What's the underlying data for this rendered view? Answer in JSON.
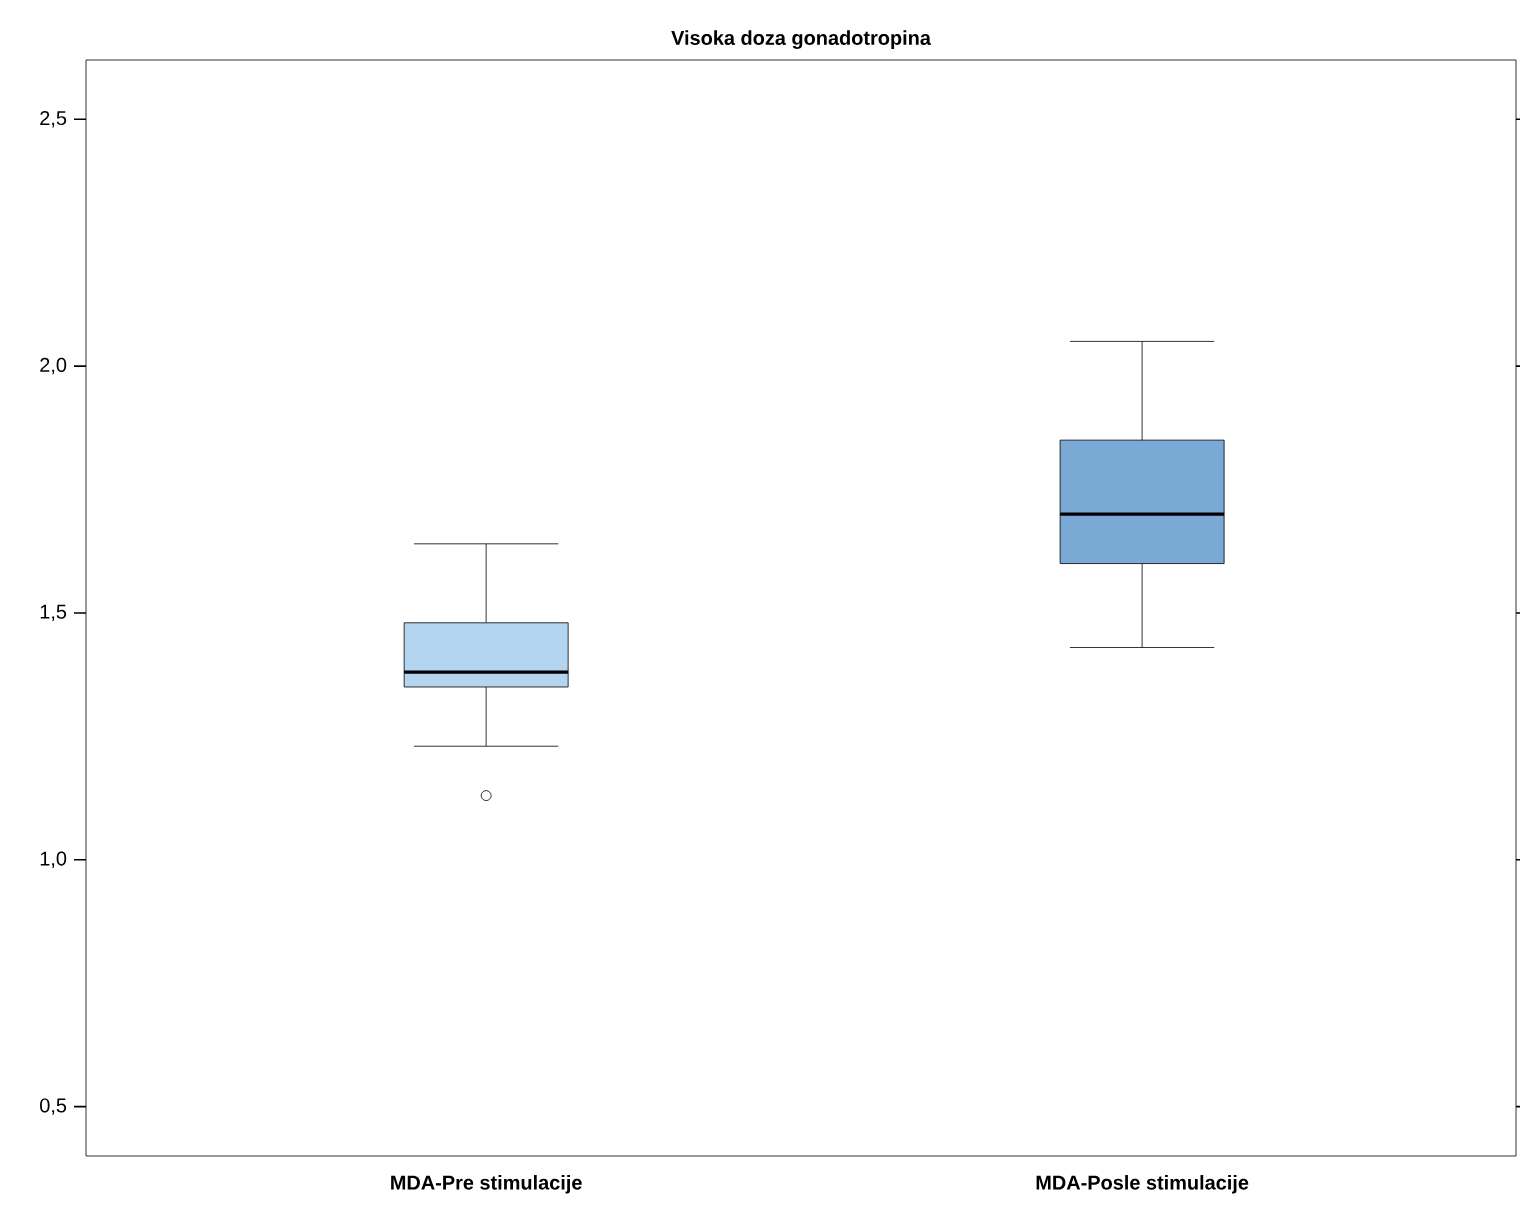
{
  "chart_data": {
    "type": "box",
    "title": "Visoka doza gonadotropina",
    "categories": [
      "MDA-Pre stimulacije",
      "MDA-Posle stimulacije"
    ],
    "colors": [
      "#b3d5f0",
      "#7aa9d6"
    ],
    "boxes": [
      {
        "low": 1.23,
        "q1": 1.35,
        "median": 1.38,
        "q3": 1.48,
        "high": 1.64,
        "outliers": [
          1.13
        ]
      },
      {
        "low": 1.43,
        "q1": 1.6,
        "median": 1.7,
        "q3": 1.85,
        "high": 2.05
      }
    ],
    "ylim": [
      0.4,
      2.62
    ],
    "yticks": [
      {
        "value": 0.5,
        "label": "0,5"
      },
      {
        "value": 1.0,
        "label": "1,0"
      },
      {
        "value": 1.5,
        "label": "1,5"
      },
      {
        "value": 2.0,
        "label": "2,0"
      },
      {
        "value": 2.5,
        "label": "2,5"
      }
    ]
  }
}
